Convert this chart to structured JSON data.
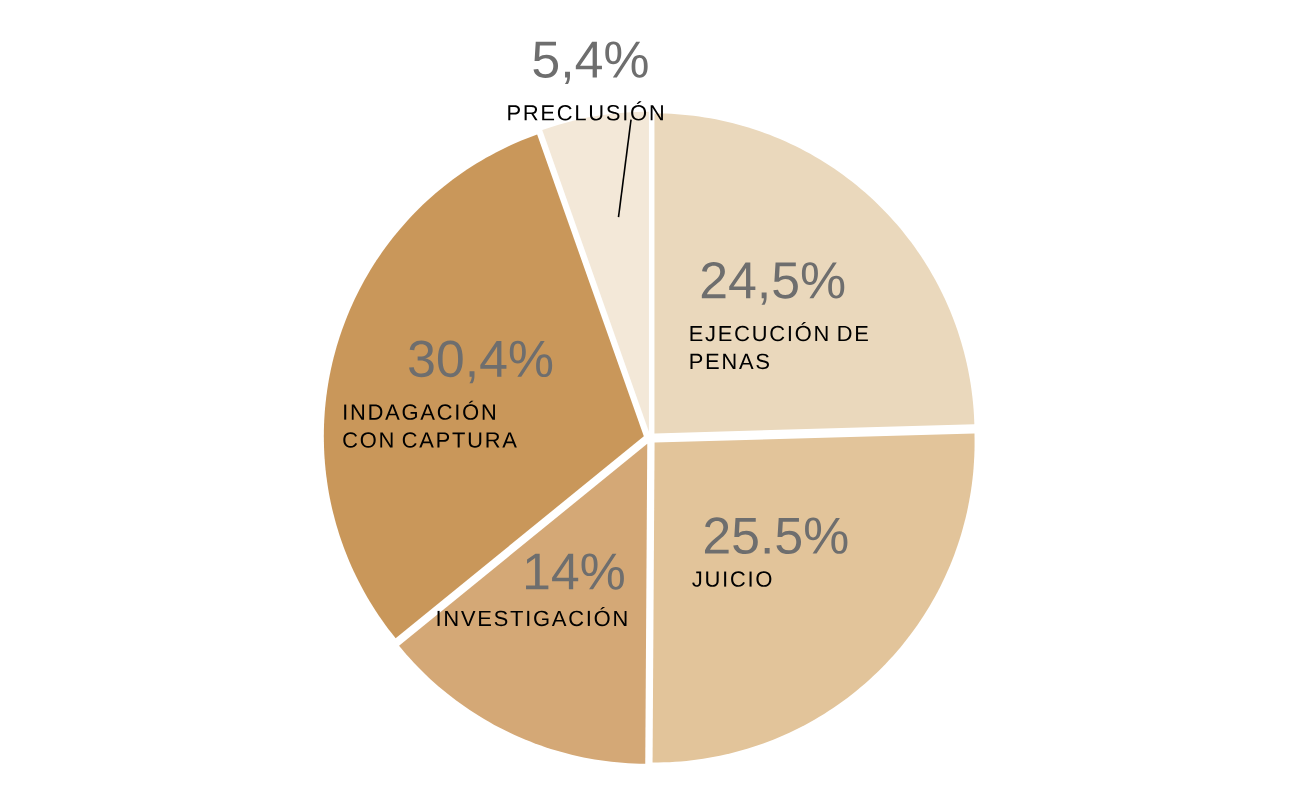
{
  "chart_data": {
    "type": "pie",
    "categories": [
      "EJECUCIÓN DE PENAS",
      "JUICIO",
      "INVESTIGACIÓN",
      "INDAGACIÓN CON CAPTURA",
      "PRECLUSIÓN"
    ],
    "values": [
      24.5,
      25.5,
      14,
      30.4,
      5.4
    ],
    "value_labels": [
      "24,5%",
      "25.5%",
      "14%",
      "30,4%",
      "5,4%"
    ],
    "colors": [
      "#ead8bc",
      "#e2c49a",
      "#d4a876",
      "#c9975a",
      "#f3e8d8"
    ]
  }
}
